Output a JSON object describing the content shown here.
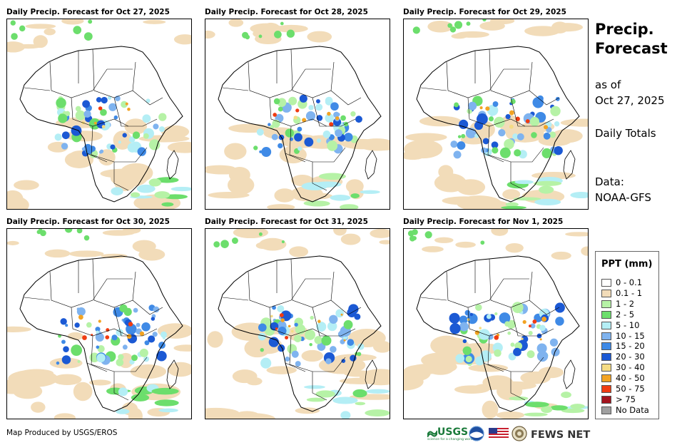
{
  "panels": [
    {
      "title": "Daily Precip. Forecast for Oct 27, 2025"
    },
    {
      "title": "Daily Precip. Forecast for Oct 28, 2025"
    },
    {
      "title": "Daily Precip. Forecast for Oct 29, 2025"
    },
    {
      "title": "Daily Precip. Forecast for Oct 30, 2025"
    },
    {
      "title": "Daily Precip. Forecast for Oct 31, 2025"
    },
    {
      "title": "Daily Precip. Forecast for Nov 1, 2025"
    }
  ],
  "side": {
    "title_line1": "Precip.",
    "title_line2": "Forecast",
    "asof_label": "as of",
    "asof_date": "Oct 27, 2025",
    "totals": "Daily Totals",
    "data_label": "Data:",
    "data_source": "NOAA-GFS"
  },
  "legend": {
    "title": "PPT (mm)",
    "items": [
      {
        "label": "0 - 0.1",
        "color": "#ffffff"
      },
      {
        "label": "0.1 - 1",
        "color": "#f2dcb9"
      },
      {
        "label": "1 - 2",
        "color": "#b6f2a6"
      },
      {
        "label": "2 - 5",
        "color": "#6cde6c"
      },
      {
        "label": "5 - 10",
        "color": "#b4eef5"
      },
      {
        "label": "10 - 15",
        "color": "#7fb3ef"
      },
      {
        "label": "15 - 20",
        "color": "#3f8ae6"
      },
      {
        "label": "20 - 30",
        "color": "#1b59d4"
      },
      {
        "label": "30 - 40",
        "color": "#f5dc84"
      },
      {
        "label": "40 - 50",
        "color": "#f2a323"
      },
      {
        "label": "50 - 75",
        "color": "#f03c12"
      },
      {
        "label": "> 75",
        "color": "#a4141e"
      },
      {
        "label": "No Data",
        "color": "#a0a0a0"
      }
    ]
  },
  "footer": {
    "credit": "Map Produced by USGS/EROS",
    "usgs": "USGS",
    "usgs_tagline": "science for a changing world",
    "fews": "FEWS NET"
  }
}
